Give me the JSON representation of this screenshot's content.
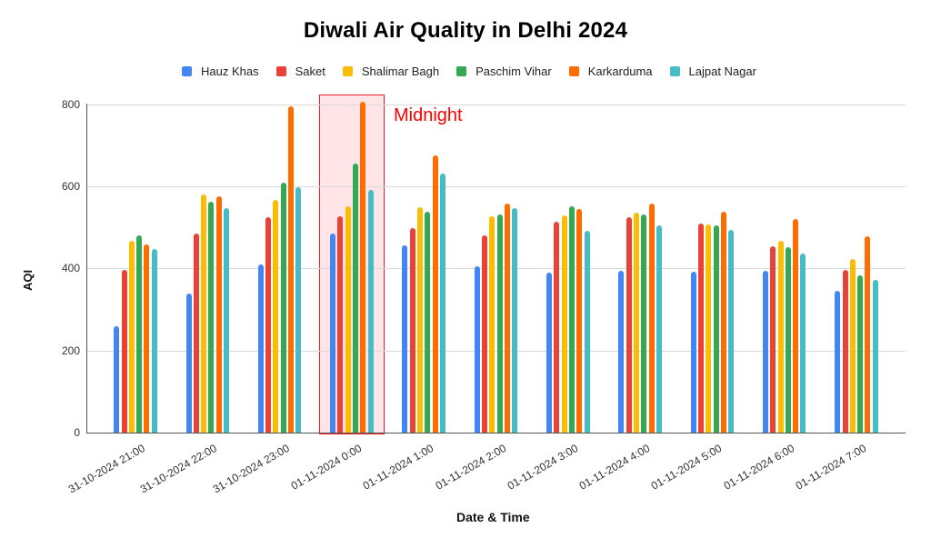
{
  "chart_data": {
    "type": "bar",
    "title": "Diwali Air Quality in Delhi 2024",
    "xlabel": "Date & Time",
    "ylabel": "AQI",
    "ylim": [
      0,
      800
    ],
    "yticks": [
      0,
      200,
      400,
      600,
      800
    ],
    "grid": true,
    "legend_position": "top",
    "categories": [
      "31-10-2024 21:00",
      "31-10-2024 22:00",
      "31-10-2024 23:00",
      "01-11-2024 0:00",
      "01-11-2024 1:00",
      "01-11-2024 2:00",
      "01-11-2024 3:00",
      "01-11-2024 4:00",
      "01-11-2024 5:00",
      "01-11-2024 6:00",
      "01-11-2024 7:00"
    ],
    "series": [
      {
        "name": "Hauz Khas",
        "color": "#4285f4",
        "values": [
          259,
          339,
          410,
          485,
          456,
          405,
          389,
          395,
          392,
          395,
          346
        ]
      },
      {
        "name": "Saket",
        "color": "#ea4335",
        "values": [
          397,
          486,
          524,
          527,
          499,
          481,
          513,
          524,
          510,
          455,
          397
        ]
      },
      {
        "name": "Shalimar Bagh",
        "color": "#fbbc04",
        "values": [
          467,
          580,
          567,
          551,
          549,
          527,
          529,
          536,
          507,
          468,
          423
        ]
      },
      {
        "name": "Paschim Vihar",
        "color": "#34a853",
        "values": [
          481,
          563,
          608,
          656,
          537,
          532,
          551,
          532,
          505,
          451,
          382
        ]
      },
      {
        "name": "Karkarduma",
        "color": "#ff6d01",
        "values": [
          459,
          575,
          796,
          805,
          676,
          558,
          544,
          558,
          539,
          521,
          479
        ]
      },
      {
        "name": "Lajpat Nagar",
        "color": "#46bdc6",
        "values": [
          448,
          547,
          598,
          592,
          630,
          547,
          492,
          505,
          493,
          436,
          372
        ]
      }
    ],
    "annotations": [
      {
        "text": "Midnight",
        "color": "#ff0000",
        "highlight_category": "01-11-2024 0:00"
      }
    ]
  }
}
